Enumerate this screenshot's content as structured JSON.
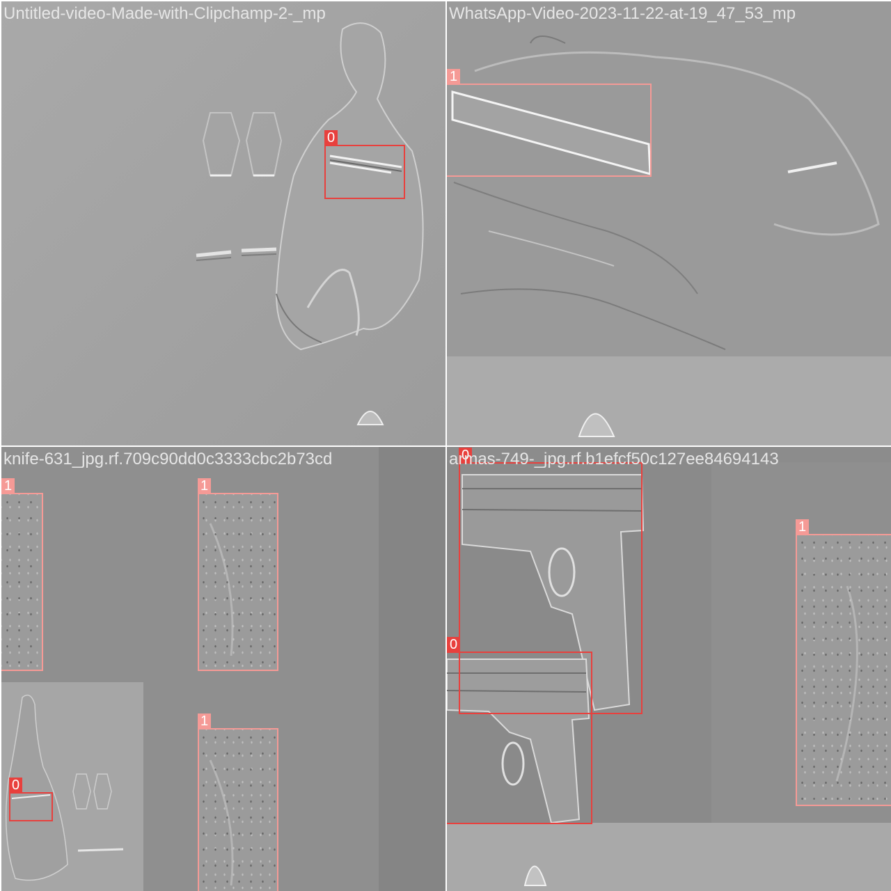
{
  "tiles": [
    {
      "title": "Untitled-video-Made-with-Clipchamp-2-_mp"
    },
    {
      "title": "WhatsApp-Video-2023-11-22-at-19_47_53_mp"
    },
    {
      "title": "knife-631_jpg.rf.709c90dd0c3333cbc2b73cd"
    },
    {
      "title": "armas-749-_jpg.rf.b1efcf50c127ee84694143"
    }
  ],
  "labels": {
    "cls0": "0",
    "cls1": "1"
  },
  "colors": {
    "class0": "#e8403d",
    "class1": "#f59a96",
    "title": "#e6e6e6"
  }
}
